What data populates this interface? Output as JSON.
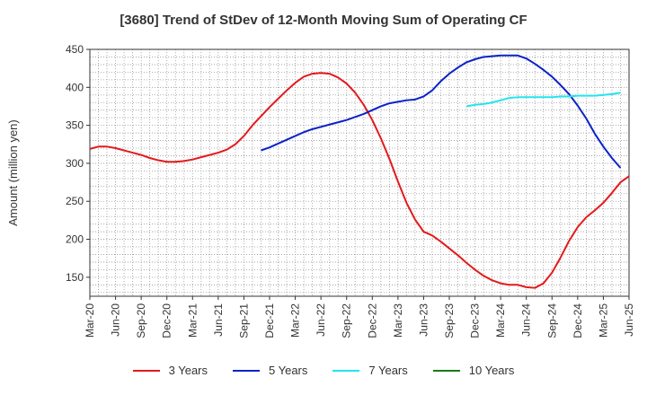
{
  "chart_data": {
    "type": "line",
    "title": "[3680]  Trend of StDev of 12-Month Moving Sum of Operating CF",
    "ylabel": "Amount (million yen)",
    "xlabel": "",
    "ylim": [
      125,
      450
    ],
    "yticks": [
      150,
      200,
      250,
      300,
      350,
      400,
      450
    ],
    "x_tick_labels": [
      "Mar-20",
      "Jun-20",
      "Sep-20",
      "Dec-20",
      "Mar-21",
      "Jun-21",
      "Sep-21",
      "Dec-21",
      "Mar-22",
      "Jun-22",
      "Sep-22",
      "Dec-22",
      "Mar-23",
      "Jun-23",
      "Sep-23",
      "Dec-23",
      "Mar-24",
      "Jun-24",
      "Sep-24",
      "Dec-24",
      "Mar-25",
      "Jun-25"
    ],
    "grid": true,
    "legend_position": "bottom",
    "series": [
      {
        "name": "3 Years",
        "color": "#e31a1c",
        "start": "Mar-20",
        "values": [
          319,
          322,
          322,
          320,
          317,
          314,
          311,
          307,
          304,
          302,
          302,
          303,
          305,
          308,
          311,
          314,
          318,
          325,
          336,
          350,
          362,
          374,
          385,
          396,
          406,
          414,
          418,
          419,
          418,
          413,
          405,
          393,
          377,
          357,
          333,
          306,
          276,
          248,
          226,
          210,
          205,
          197,
          188,
          179,
          169,
          160,
          152,
          146,
          142,
          140,
          140,
          137,
          136,
          142,
          156,
          176,
          198,
          216,
          229,
          238,
          248,
          261,
          275,
          283
        ]
      },
      {
        "name": "5 Years",
        "color": "#0a22c8",
        "start": "Nov-21",
        "values": [
          317,
          321,
          326,
          331,
          336,
          341,
          345,
          348,
          351,
          354,
          357,
          361,
          365,
          370,
          375,
          379,
          381,
          383,
          384,
          388,
          396,
          408,
          418,
          426,
          433,
          437,
          440,
          441,
          442,
          442,
          442,
          438,
          431,
          423,
          414,
          403,
          391,
          376,
          359,
          339,
          322,
          307,
          294
        ]
      },
      {
        "name": "7 Years",
        "color": "#22e5f0",
        "start": "Nov-23",
        "values": [
          375,
          377,
          378,
          380,
          383,
          386,
          387,
          387,
          387,
          387,
          387,
          388,
          388,
          389,
          389,
          389,
          390,
          391,
          393
        ]
      },
      {
        "name": "10 Years",
        "color": "#1a7a1a",
        "start": "Mar-25",
        "values": []
      }
    ]
  }
}
